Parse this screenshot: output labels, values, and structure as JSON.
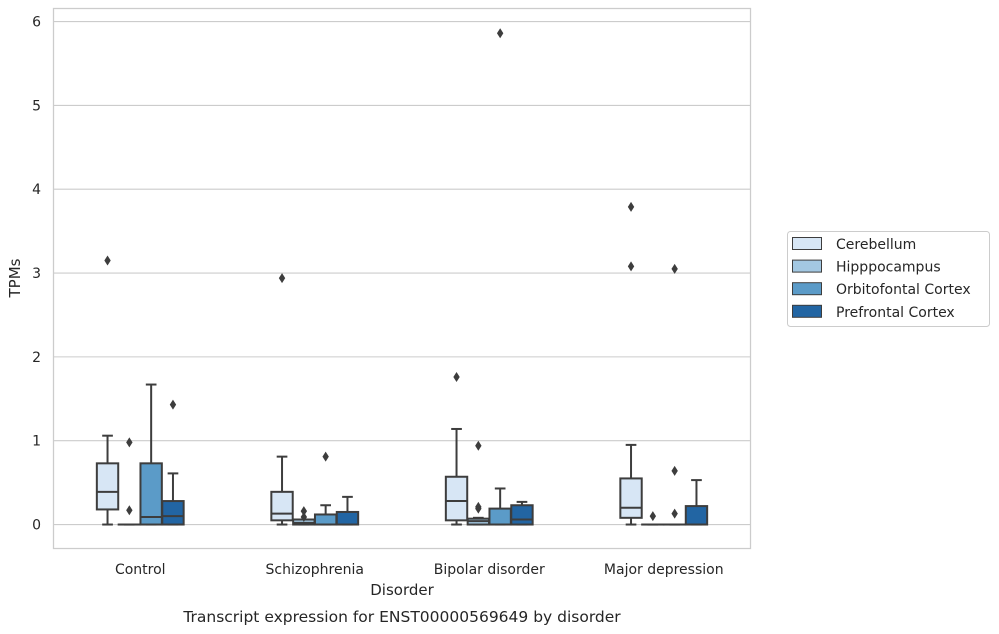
{
  "caption": "Transcript expression for ENST00000569649 by disorder",
  "chart_data": {
    "type": "box",
    "xlabel": "Disorder",
    "ylabel": "TPMs",
    "ylim": [
      -0.28,
      6.15
    ],
    "yticks": [
      0,
      1,
      2,
      3,
      4,
      5,
      6
    ],
    "categories": [
      "Control",
      "Schizophrenia",
      "Bipolar disorder",
      "Major depression"
    ],
    "grid": "horizontal",
    "legend_position": "right",
    "series": [
      {
        "name": "Cerebellum",
        "color": "#d7e6f5",
        "boxes": [
          {
            "whislo": 0.0,
            "q1": 0.18,
            "med": 0.39,
            "q3": 0.73,
            "whishi": 1.06,
            "fliers": [
              3.15
            ]
          },
          {
            "whislo": 0.0,
            "q1": 0.05,
            "med": 0.13,
            "q3": 0.39,
            "whishi": 0.81,
            "fliers": [
              2.94
            ]
          },
          {
            "whislo": 0.0,
            "q1": 0.05,
            "med": 0.28,
            "q3": 0.57,
            "whishi": 1.14,
            "fliers": [
              1.76
            ]
          },
          {
            "whislo": 0.0,
            "q1": 0.08,
            "med": 0.2,
            "q3": 0.55,
            "whishi": 0.95,
            "fliers": [
              3.79,
              3.08
            ]
          }
        ]
      },
      {
        "name": "Hipppocampus",
        "color": "#a3c8e2",
        "boxes": [
          {
            "whislo": 0.0,
            "q1": 0.0,
            "med": 0.0,
            "q3": 0.0,
            "whishi": 0.0,
            "fliers": [
              0.98,
              0.17
            ]
          },
          {
            "whislo": 0.0,
            "q1": 0.0,
            "med": 0.02,
            "q3": 0.06,
            "whishi": 0.06,
            "fliers": [
              0.16,
              0.09
            ]
          },
          {
            "whislo": 0.0,
            "q1": 0.0,
            "med": 0.04,
            "q3": 0.07,
            "whishi": 0.08,
            "fliers": [
              0.94,
              0.21,
              0.19
            ]
          },
          {
            "whislo": 0.0,
            "q1": 0.0,
            "med": 0.0,
            "q3": 0.0,
            "whishi": 0.0,
            "fliers": [
              0.1
            ]
          }
        ]
      },
      {
        "name": "Orbitofontal Cortex",
        "color": "#5b9bc8",
        "boxes": [
          {
            "whislo": 0.0,
            "q1": 0.0,
            "med": 0.09,
            "q3": 0.73,
            "whishi": 1.67,
            "fliers": []
          },
          {
            "whislo": 0.0,
            "q1": 0.0,
            "med": 0.0,
            "q3": 0.12,
            "whishi": 0.23,
            "fliers": [
              0.81
            ]
          },
          {
            "whislo": 0.0,
            "q1": 0.0,
            "med": 0.0,
            "q3": 0.19,
            "whishi": 0.43,
            "fliers": [
              5.86
            ]
          },
          {
            "whislo": 0.0,
            "q1": 0.0,
            "med": 0.0,
            "q3": 0.0,
            "whishi": 0.0,
            "fliers": [
              0.64,
              0.13,
              3.05
            ]
          }
        ]
      },
      {
        "name": "Prefrontal Cortex",
        "color": "#2265a3",
        "boxes": [
          {
            "whislo": 0.0,
            "q1": 0.0,
            "med": 0.1,
            "q3": 0.28,
            "whishi": 0.61,
            "fliers": [
              1.43
            ]
          },
          {
            "whislo": 0.0,
            "q1": 0.0,
            "med": 0.0,
            "q3": 0.15,
            "whishi": 0.33,
            "fliers": []
          },
          {
            "whislo": 0.0,
            "q1": 0.0,
            "med": 0.06,
            "q3": 0.23,
            "whishi": 0.27,
            "fliers": []
          },
          {
            "whislo": 0.0,
            "q1": 0.0,
            "med": 0.0,
            "q3": 0.22,
            "whishi": 0.53,
            "fliers": []
          }
        ]
      }
    ]
  }
}
